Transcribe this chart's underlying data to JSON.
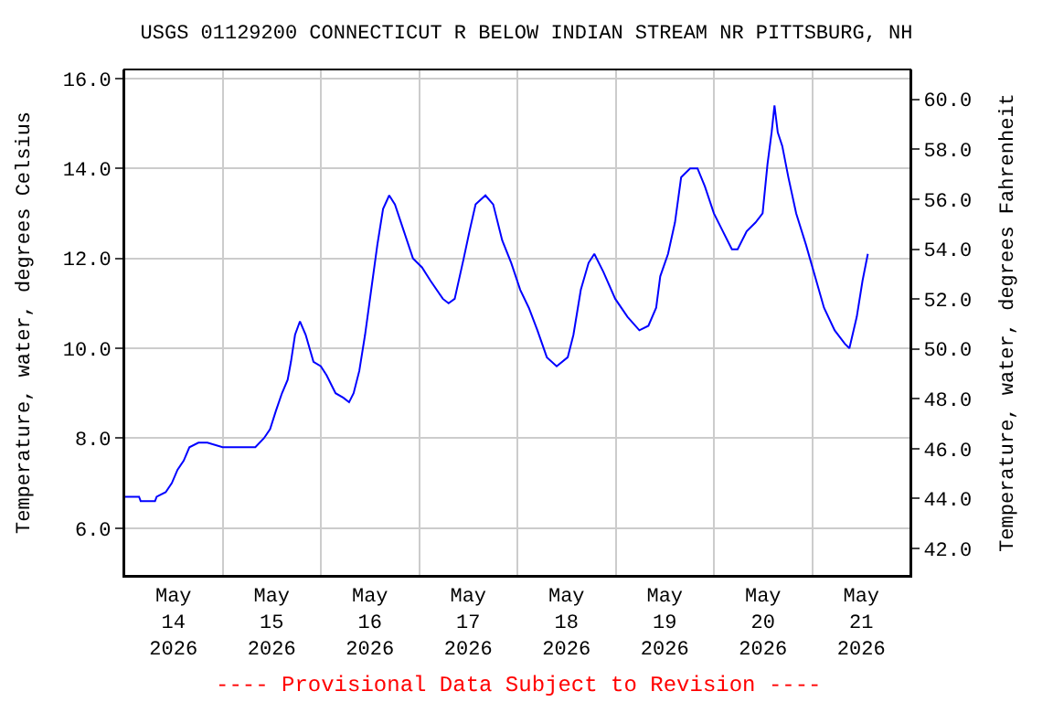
{
  "chart_data": {
    "type": "line",
    "title": "USGS 01129200 CONNECTICUT R BELOW INDIAN STREAM NR PITTSBURG, NH",
    "ylabel": "Temperature, water, degrees Celsius",
    "y2label": "Temperature, water, degrees Fahrenheit",
    "annotations": [
      "---- Provisional Data Subject to Revision ----"
    ],
    "x": [
      "2026-05-14T00:00",
      "2026-05-14T03:36",
      "2026-05-14T04:00",
      "2026-05-14T07:30",
      "2026-05-14T07:54",
      "2026-05-14T10:06",
      "2026-05-14T11:36",
      "2026-05-14T13:00",
      "2026-05-14T14:30",
      "2026-05-14T15:54",
      "2026-05-14T18:06",
      "2026-05-14T20:18",
      "2026-05-15T00:00",
      "2026-05-15T02:48",
      "2026-05-15T05:48",
      "2026-05-15T08:00",
      "2026-05-15T10:06",
      "2026-05-15T11:36",
      "2026-05-15T13:00",
      "2026-05-15T14:30",
      "2026-05-15T15:54",
      "2026-05-15T16:42",
      "2026-05-15T17:42",
      "2026-05-15T18:54",
      "2026-05-15T20:18",
      "2026-05-15T22:12",
      "2026-05-16T00:00",
      "2026-05-16T01:24",
      "2026-05-16T03:36",
      "2026-05-16T05:30",
      "2026-05-16T06:54",
      "2026-05-16T08:00",
      "2026-05-16T09:24",
      "2026-05-16T10:48",
      "2026-05-16T12:18",
      "2026-05-16T13:48",
      "2026-05-16T15:12",
      "2026-05-16T16:42",
      "2026-05-16T18:06",
      "2026-05-16T20:18",
      "2026-05-16T22:30",
      "2026-05-17T00:42",
      "2026-05-17T02:48",
      "2026-05-17T05:48",
      "2026-05-17T07:12",
      "2026-05-17T08:42",
      "2026-05-17T10:54",
      "2026-05-17T12:18",
      "2026-05-17T13:48",
      "2026-05-17T16:12",
      "2026-05-17T18:06",
      "2026-05-17T20:18",
      "2026-05-17T22:30",
      "2026-05-18T00:42",
      "2026-05-18T02:48",
      "2026-05-18T04:54",
      "2026-05-18T07:12",
      "2026-05-18T09:36",
      "2026-05-18T12:18",
      "2026-05-18T13:42",
      "2026-05-18T15:30",
      "2026-05-18T17:24",
      "2026-05-18T18:48",
      "2026-05-18T21:00",
      "2026-05-18T23:54",
      "2026-05-19T02:54",
      "2026-05-19T05:48",
      "2026-05-19T08:00",
      "2026-05-19T09:54",
      "2026-05-19T10:54",
      "2026-05-19T12:48",
      "2026-05-19T14:30",
      "2026-05-19T16:00",
      "2026-05-19T18:12",
      "2026-05-19T20:00",
      "2026-05-19T21:48",
      "2026-05-20T00:00",
      "2026-05-20T02:12",
      "2026-05-20T04:24",
      "2026-05-20T05:48",
      "2026-05-20T08:00",
      "2026-05-20T10:12",
      "2026-05-20T11:54",
      "2026-05-20T13:06",
      "2026-05-20T14:06",
      "2026-05-20T14:48",
      "2026-05-20T15:36",
      "2026-05-20T16:42",
      "2026-05-20T18:12",
      "2026-05-20T20:06",
      "2026-05-20T22:30",
      "2026-05-21T00:42",
      "2026-05-21T02:54",
      "2026-05-21T05:30",
      "2026-05-21T08:00",
      "2026-05-21T09:06",
      "2026-05-21T10:54",
      "2026-05-21T12:18",
      "2026-05-21T13:36"
    ],
    "series": [
      {
        "color": "#0000ff",
        "values": [
          6.7,
          6.7,
          6.6,
          6.6,
          6.7,
          6.8,
          7.0,
          7.3,
          7.5,
          7.8,
          7.9,
          7.9,
          7.8,
          7.8,
          7.8,
          7.8,
          8.0,
          8.2,
          8.6,
          9.0,
          9.3,
          9.7,
          10.3,
          10.6,
          10.3,
          9.7,
          9.6,
          9.4,
          9.0,
          8.9,
          8.8,
          9.0,
          9.5,
          10.3,
          11.3,
          12.3,
          13.1,
          13.4,
          13.2,
          12.6,
          12.0,
          11.8,
          11.5,
          11.1,
          11.0,
          11.1,
          12.0,
          12.6,
          13.2,
          13.4,
          13.2,
          12.4,
          11.9,
          11.3,
          10.9,
          10.4,
          9.8,
          9.6,
          9.8,
          10.3,
          11.3,
          11.9,
          12.1,
          11.7,
          11.1,
          10.7,
          10.4,
          10.5,
          10.9,
          11.6,
          12.1,
          12.8,
          13.8,
          14.0,
          14.0,
          13.6,
          13.0,
          12.6,
          12.2,
          12.2,
          12.6,
          12.8,
          13.0,
          14.1,
          14.8,
          15.4,
          14.8,
          14.5,
          13.8,
          13.0,
          12.3,
          11.6,
          10.9,
          10.4,
          10.1,
          10.0,
          10.7,
          11.5,
          12.1
        ]
      }
    ],
    "xlim": [
      "2026-05-14T00:00",
      "2026-05-22T00:00"
    ],
    "xticks": [
      {
        "value": "2026-05-14T12:00",
        "label": "May\n14\n2026"
      },
      {
        "value": "2026-05-15T12:00",
        "label": "May\n15\n2026"
      },
      {
        "value": "2026-05-16T12:00",
        "label": "May\n16\n2026"
      },
      {
        "value": "2026-05-17T12:00",
        "label": "May\n17\n2026"
      },
      {
        "value": "2026-05-18T12:00",
        "label": "May\n18\n2026"
      },
      {
        "value": "2026-05-19T12:00",
        "label": "May\n19\n2026"
      },
      {
        "value": "2026-05-20T12:00",
        "label": "May\n20\n2026"
      },
      {
        "value": "2026-05-21T12:00",
        "label": "May\n21\n2026"
      },
      {
        "value": "2026-05-15T00:00",
        "label": null
      },
      {
        "value": "2026-05-16T00:00",
        "label": null
      },
      {
        "value": "2026-05-17T00:00",
        "label": null
      },
      {
        "value": "2026-05-18T00:00",
        "label": null
      },
      {
        "value": "2026-05-19T00:00",
        "label": null
      },
      {
        "value": "2026-05-20T00:00",
        "label": null
      },
      {
        "value": "2026-05-21T00:00",
        "label": null
      }
    ],
    "ylim": [
      4.94,
      16.2
    ],
    "yticks": [
      {
        "value": 6,
        "label": "6.0"
      },
      {
        "value": 8,
        "label": "8.0"
      },
      {
        "value": 10,
        "label": "10.0"
      },
      {
        "value": 12,
        "label": "12.0"
      },
      {
        "value": 14,
        "label": "14.0"
      },
      {
        "value": 16,
        "label": "16.0"
      }
    ],
    "y2lim": [
      40.9,
      61.2
    ],
    "y2ticks": [
      {
        "value": 42,
        "label": "42.0"
      },
      {
        "value": 44,
        "label": "44.0"
      },
      {
        "value": 46,
        "label": "46.0"
      },
      {
        "value": 48,
        "label": "48.0"
      },
      {
        "value": 50,
        "label": "50.0"
      },
      {
        "value": 52,
        "label": "52.0"
      },
      {
        "value": 54,
        "label": "54.0"
      },
      {
        "value": 56,
        "label": "56.0"
      },
      {
        "value": 58,
        "label": "58.0"
      },
      {
        "value": 60,
        "label": "60.0"
      }
    ],
    "grid": true,
    "marker": "none",
    "line_style": "solid"
  }
}
